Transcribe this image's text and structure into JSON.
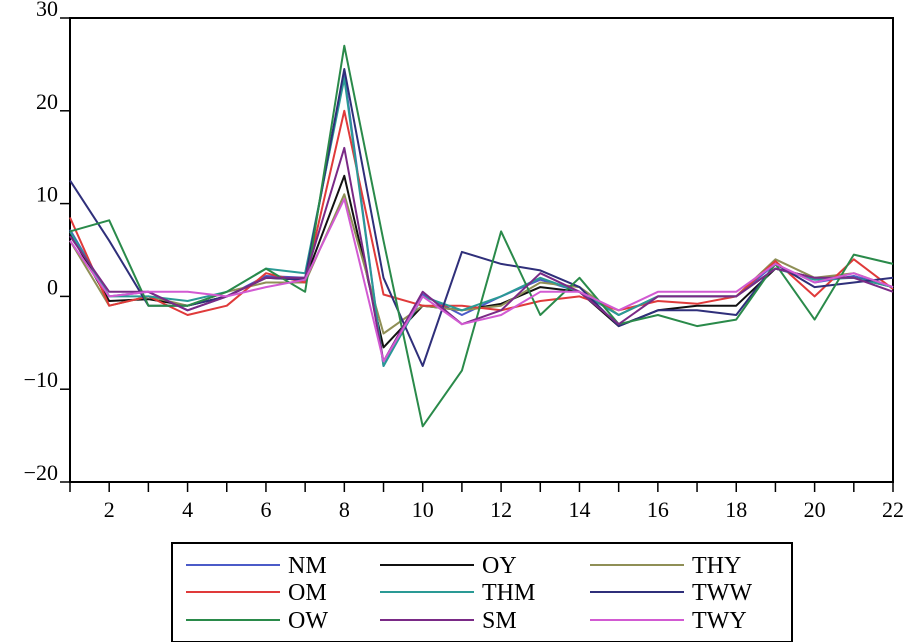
{
  "chart_data": {
    "type": "line",
    "title": "",
    "xlabel": "",
    "ylabel": "",
    "x": [
      1,
      2,
      3,
      4,
      5,
      6,
      7,
      8,
      9,
      10,
      11,
      12,
      13,
      14,
      15,
      16,
      17,
      18,
      19,
      20,
      21,
      22
    ],
    "xlim": [
      1,
      22
    ],
    "ylim": [
      -20,
      30
    ],
    "x_tick_labels": [
      "2",
      "4",
      "6",
      "8",
      "10",
      "12",
      "14",
      "16",
      "18",
      "20",
      "22"
    ],
    "y_tick_labels": [
      "30",
      "20",
      "10",
      "0",
      "−10",
      "−20"
    ],
    "grid": false,
    "legend_position": "bottom",
    "series": [
      {
        "name": "NM",
        "color": "#4b5bc8",
        "values": [
          7.2,
          0.0,
          0.5,
          -1.5,
          0.0,
          2.2,
          2.0,
          24.0,
          -7.5,
          0.2,
          -2.0,
          0.0,
          1.8,
          0.5,
          -2.0,
          0.0,
          0.0,
          0.0,
          3.5,
          1.5,
          2.2,
          1.0
        ]
      },
      {
        "name": "OY",
        "color": "#111111",
        "values": [
          6.8,
          -0.5,
          -0.3,
          -1.0,
          0.0,
          2.0,
          1.8,
          13.0,
          -5.5,
          -1.0,
          -1.5,
          -0.8,
          1.0,
          0.5,
          -3.2,
          -1.5,
          -1.0,
          -1.0,
          3.0,
          2.0,
          2.0,
          1.0
        ]
      },
      {
        "name": "THY",
        "color": "#8f8f56",
        "values": [
          6.0,
          -1.0,
          0.0,
          -1.0,
          0.5,
          1.5,
          1.5,
          11.0,
          -4.0,
          -1.0,
          -1.5,
          -1.0,
          1.5,
          1.0,
          -2.0,
          0.0,
          0.0,
          0.0,
          4.0,
          2.0,
          2.5,
          1.0
        ]
      },
      {
        "name": "OM",
        "color": "#e03a3a",
        "values": [
          8.5,
          -1.0,
          0.0,
          -2.0,
          -1.0,
          2.5,
          1.5,
          20.0,
          0.2,
          -1.0,
          -1.0,
          -1.5,
          -0.5,
          0.0,
          -1.5,
          -0.5,
          -0.8,
          0.0,
          3.8,
          0.0,
          4.0,
          0.8
        ]
      },
      {
        "name": "THM",
        "color": "#2a9a95",
        "values": [
          7.0,
          0.0,
          0.0,
          -0.5,
          0.5,
          3.0,
          2.5,
          23.5,
          -7.5,
          0.0,
          -1.5,
          0.0,
          2.0,
          0.5,
          -2.0,
          0.0,
          0.0,
          0.0,
          3.0,
          1.8,
          2.0,
          1.0
        ]
      },
      {
        "name": "TWW",
        "color": "#2f2f7a",
        "values": [
          12.5,
          6.0,
          -1.0,
          -1.0,
          0.0,
          2.0,
          1.8,
          24.5,
          2.0,
          -7.5,
          4.8,
          3.5,
          2.8,
          1.0,
          -3.2,
          -1.5,
          -1.5,
          -2.0,
          3.5,
          1.0,
          1.5,
          2.0
        ]
      },
      {
        "name": "OW",
        "color": "#2a8a4a",
        "values": [
          7.0,
          8.2,
          -1.0,
          -1.0,
          0.5,
          3.0,
          0.5,
          27.0,
          6.0,
          -14.0,
          -8.0,
          7.0,
          -2.0,
          2.0,
          -3.0,
          -2.0,
          -3.2,
          -2.5,
          3.5,
          -2.5,
          4.5,
          3.5
        ]
      },
      {
        "name": "SM",
        "color": "#7a2a86",
        "values": [
          6.5,
          0.5,
          0.5,
          -1.5,
          0.0,
          2.0,
          2.0,
          16.0,
          -7.0,
          0.5,
          -3.0,
          -1.5,
          2.5,
          0.5,
          -3.0,
          0.0,
          0.0,
          0.0,
          3.0,
          2.0,
          2.0,
          0.5
        ]
      },
      {
        "name": "TWY",
        "color": "#d25ad2",
        "values": [
          6.0,
          0.0,
          0.5,
          0.5,
          0.0,
          1.0,
          1.8,
          10.5,
          -7.0,
          0.0,
          -3.0,
          -2.0,
          0.5,
          0.5,
          -1.5,
          0.5,
          0.5,
          0.5,
          3.5,
          1.5,
          2.5,
          1.0
        ]
      }
    ]
  }
}
